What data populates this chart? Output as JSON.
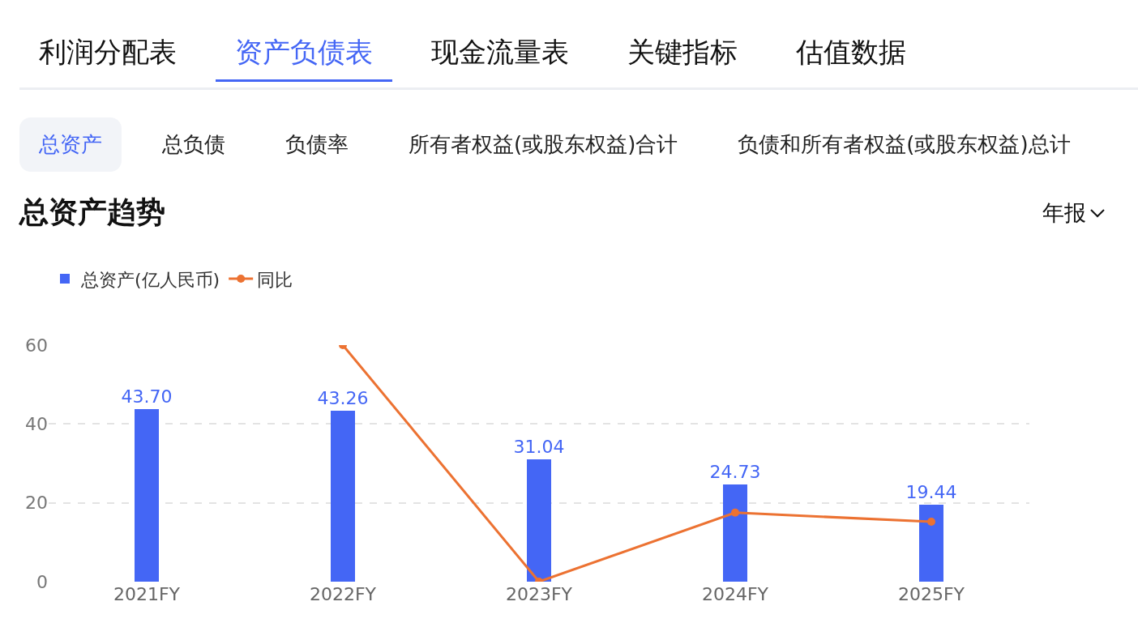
{
  "chart_data": {
    "type": "bar",
    "title": "总资产趋势",
    "categories": [
      "2021FY",
      "2022FY",
      "2023FY",
      "2024FY",
      "2025FY"
    ],
    "series": [
      {
        "name": "总资产(亿人民币)",
        "color": "#4466f5",
        "values": [
          43.7,
          43.26,
          31.04,
          24.73,
          19.44
        ],
        "value_labels": [
          "43.70",
          "43.26",
          "31.04",
          "24.73",
          "19.44"
        ]
      },
      {
        "name": "同比",
        "type": "line",
        "color": "#ec7232",
        "values": [
          null,
          60,
          0,
          17.5,
          15.2
        ],
        "marker": "circle",
        "line_style": "solid"
      }
    ],
    "ylim": [
      0,
      60
    ],
    "yticks": [
      0,
      20,
      40,
      60
    ],
    "grid": "y",
    "legend": "top left",
    "annotations": [
      "利润分配表",
      "资产负债表",
      "现金流量表",
      "关键指标",
      "估值数据",
      "总资产",
      "总负债",
      "负债率",
      "所有者权益(或股东权益)合计",
      "负债和所有者权益(或股东权益)总计",
      "年报"
    ]
  }
}
